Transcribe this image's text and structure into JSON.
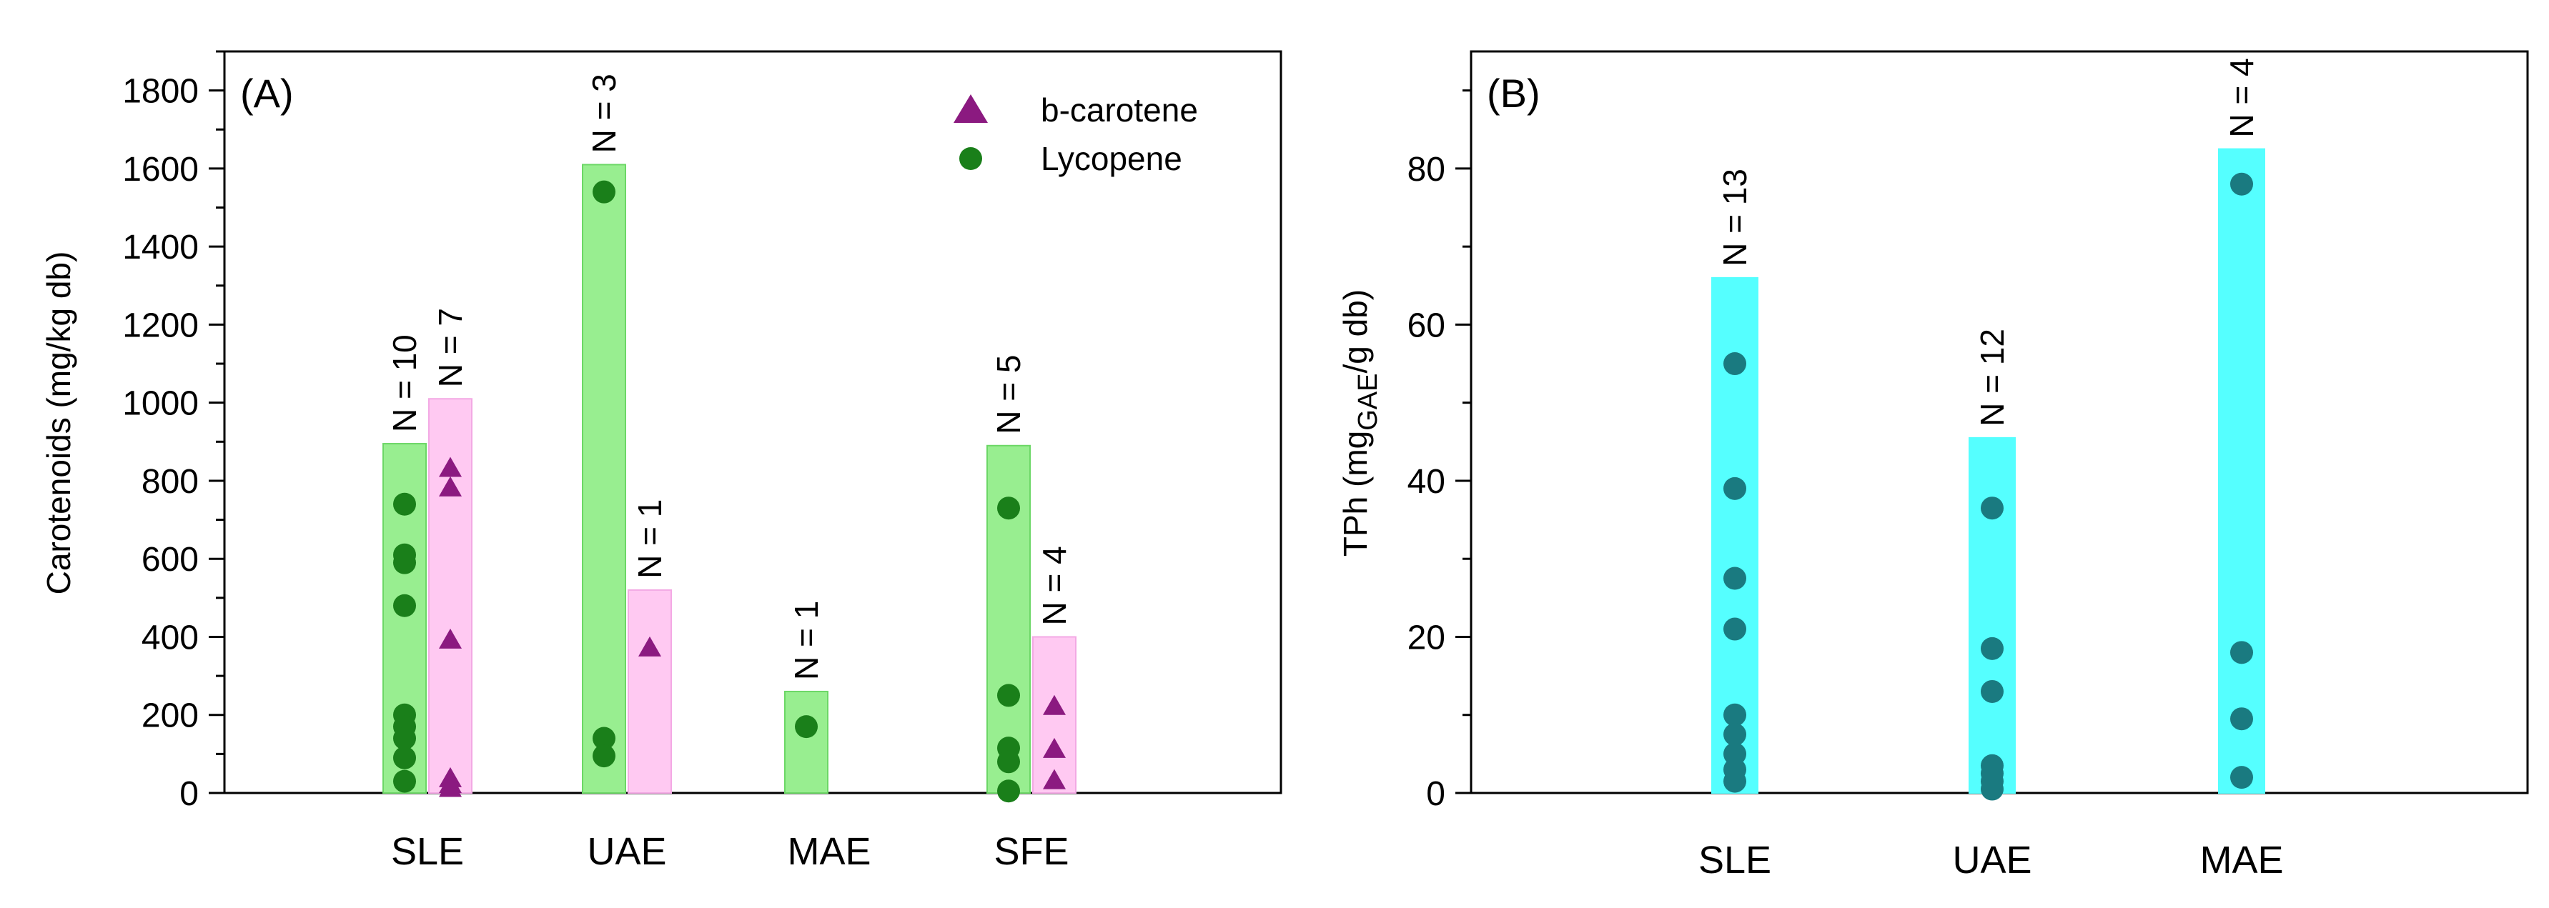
{
  "chart_data": [
    {
      "panel_label": "(A)",
      "type": "bar",
      "ylabel": "Carotenoids (mg/kg db)",
      "ylim": [
        0,
        1900
      ],
      "yticks": [
        0,
        200,
        400,
        600,
        800,
        1000,
        1200,
        1400,
        1600,
        1800
      ],
      "categories": [
        "SLE",
        "UAE",
        "MAE",
        "SFE"
      ],
      "legend": [
        {
          "label": "b-carotene",
          "marker": "triangle",
          "color": "#8b1a80"
        },
        {
          "label": "Lycopene",
          "marker": "circle",
          "color": "#1a7f1a"
        }
      ],
      "series": [
        {
          "name": "Lycopene",
          "bar_color": "#98ee90",
          "marker_color": "#1a7f1a",
          "marker": "circle",
          "bars": [
            {
              "category": "SLE",
              "value": 895,
              "n_label": "N = 10",
              "points": [
                740,
                610,
                590,
                480,
                200,
                170,
                140,
                90,
                30
              ]
            },
            {
              "category": "UAE",
              "value": 1610,
              "n_label": "N = 3",
              "points": [
                1540,
                140,
                95
              ]
            },
            {
              "category": "MAE",
              "value": 260,
              "n_label": "N = 1",
              "points": [
                170
              ]
            },
            {
              "category": "SFE",
              "value": 890,
              "n_label": "N = 5",
              "points": [
                730,
                250,
                115,
                80,
                5
              ]
            }
          ]
        },
        {
          "name": "b-carotene",
          "bar_color": "#ffc9f2",
          "marker_color": "#8b1a80",
          "marker": "triangle",
          "bars": [
            {
              "category": "SLE",
              "value": 1010,
              "n_label": "N = 7",
              "points": [
                830,
                780,
                390,
                35,
                20,
                10
              ]
            },
            {
              "category": "UAE",
              "value": 520,
              "n_label": "N = 1",
              "points": [
                370
              ]
            },
            {
              "category": "SFE",
              "value": 400,
              "n_label": "N = 4",
              "points": [
                220,
                110,
                30
              ]
            }
          ]
        }
      ]
    },
    {
      "panel_label": "(B)",
      "type": "bar",
      "ylabel_main": "TPh (mg",
      "ylabel_sub": "GAE",
      "ylabel_tail": "/g db)",
      "ylim": [
        0,
        95
      ],
      "yticks": [
        0,
        20,
        40,
        60,
        80
      ],
      "categories": [
        "SLE",
        "UAE",
        "MAE"
      ],
      "series": [
        {
          "name": "TPh",
          "bar_color": "#55ffff",
          "marker_color": "#1a7a80",
          "marker": "circle",
          "bars": [
            {
              "category": "SLE",
              "value": 66,
              "n_label": "N = 13",
              "points": [
                55,
                39,
                27.5,
                21,
                10,
                7.5,
                5,
                3,
                1.5
              ]
            },
            {
              "category": "UAE",
              "value": 45.5,
              "n_label": "N = 12",
              "points": [
                36.5,
                18.5,
                13,
                3.5,
                2.5,
                1.5,
                0.5
              ]
            },
            {
              "category": "MAE",
              "value": 82.5,
              "n_label": "N = 4",
              "points": [
                78,
                18,
                9.5,
                2
              ]
            }
          ]
        }
      ]
    }
  ]
}
